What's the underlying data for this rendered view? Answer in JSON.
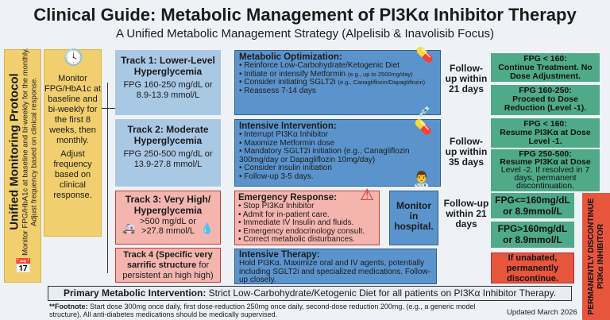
{
  "header": {
    "title": "Clinical Guide: Metabolic Management of PI3Kα Inhibitor Therapy",
    "subtitle": "A Unified Metabolic Management Strategy (Alpelisib & Inavolisib Focus)"
  },
  "protocol": {
    "title": "Unified Monitoring Protocol",
    "text": "Monitor FPG/HbA1c at baseline and bi-weekly for the monthly. Adjust frequency based on clinical response.",
    "monitor": "Monitor FPG/HbA1c at baseline and bi-weekly for the first 8 weeks, then monthly.",
    "adjust": "Adjust frequency based on clinical response."
  },
  "tracks": [
    {
      "title": "Track 1: Lower-Level Hyperglycemia",
      "range": "FPG 160-250 mg/dL or 8.9-13.9 mmol/L"
    },
    {
      "title": "Track 2: Moderate Hyperglycemia",
      "range": "FPG 250-500 mg/dL or 13.9-27.8 mmol/L"
    },
    {
      "title": "Track 3: Very High/ Hyperglycemia",
      "range": ">500 mg/dL or >27.8 mmol/L"
    },
    {
      "title": "Track 4 (Specific very sarrific structure",
      "rest": "for persistent an high high)"
    }
  ],
  "actions": {
    "a1": {
      "title": "Metabolic Optimization:",
      "items": [
        "Reinforce Low-Carbohydrate/Ketogenic Diet",
        "Initiate or intensify Metformin",
        "Consider initiating SGLT2i",
        "Reassess 7-14 days"
      ],
      "notes": [
        "(e.g., up to 2500mg/day)",
        "(e.g., Canagliflozin/Dapagliflozin)"
      ]
    },
    "a2": {
      "title": "Intensive Intervention:",
      "items": [
        "Interrupt PI3Kα Inhibitor",
        "Maximize Metformin dose",
        "Mandatory SGLT2i initiation (e.g., Canagliflozin 300mg/day or Dapagliflozin 10mg/day)",
        "Consider insulin initiation",
        "Follow-up 3-5 days."
      ]
    },
    "a3": {
      "title": "Emergency Response:",
      "items": [
        "Stop PI3Kα Inhibitor",
        "Admit for in-patient care.",
        "Immediate IV Insulin and fluids.",
        "Emergency endocrinology consult.",
        "Correct metabolic disturbances."
      ]
    },
    "monitor": "Monitor in hospital.",
    "a4": {
      "title": "Intensive Therapy:",
      "items": [
        "Hold PI3Kα. Maximize oral and IV agents, potentially including SGLT2i and specialized medications. Follow-up closely."
      ]
    }
  },
  "followups": [
    "Follow-up within 21 days",
    "Follow-up within 35 days",
    "Follow-up within 21 days"
  ],
  "outcomes": [
    {
      "title": "FPG < 160:",
      "text": "Continue Treatment. No Dose Adjustment."
    },
    {
      "title": "FPG 160-250:",
      "text": "Proceed to Dose Reduction (Level -1)."
    },
    {
      "title": "FPG < 160:",
      "text": "Resume PI3Kα at Dose Level -1."
    },
    {
      "title": "FPG 250-500:",
      "text": "Resume PI3Kα at Dose",
      "extra": "Level -2. If resolved in 7 days, permanent discontinuation."
    },
    {
      "text": "FPG<=160mg/dL or 8.9mmol/L"
    },
    {
      "text": "FPG>160mg/dL or 8.9mmol/L"
    },
    {
      "text": "If unabated, permanently discontinue."
    }
  ],
  "discontinue": "PERMANENTLY DISCONTINUE PI3Kα INHIBITOR",
  "primary": {
    "label": "Primary Metabolic Intervention:",
    "text": "Strict Low-Carbohydrate/Ketogenic Diet for all patients on PI3Kα Inhibitor Therapy."
  },
  "footnote": {
    "label": "**Footnote:",
    "text": "Start dose 300mg once daily, first dose-reduction 250mg once daily, second-dose reduction 200mg. (e.g., a generic model structure). All anti-diabetes medications should be medically supervised."
  },
  "updated": "Updated March 2026",
  "colors": {
    "track_blue": "#a9c8e4",
    "action_blue": "#5b94cc",
    "yellow": "#f1cf6e",
    "green": "#4eaa88",
    "red": "#e8553d",
    "light_red": "#f3b5ae"
  }
}
